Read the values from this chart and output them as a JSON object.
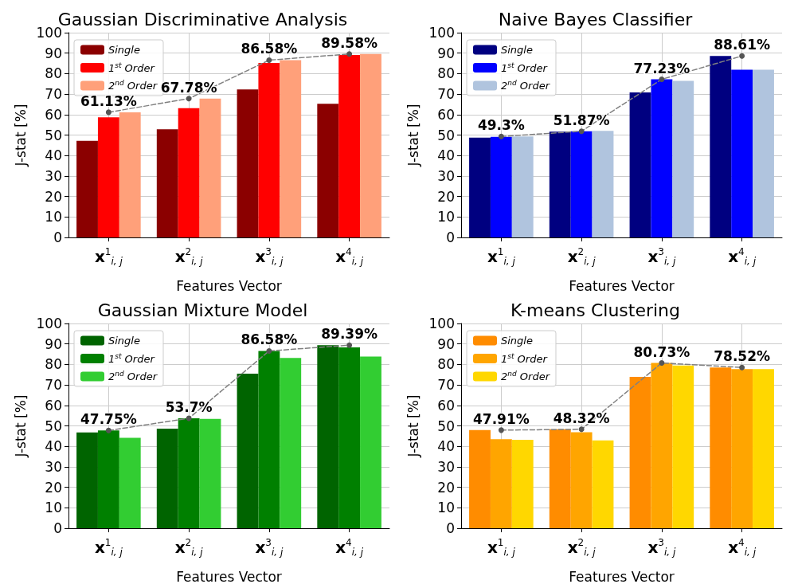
{
  "chart_data": [
    {
      "type": "bar",
      "title": "Gaussian Discriminative Analysis",
      "xlabel": "Features Vector",
      "ylabel": "J-stat [%]",
      "categories": [
        "x$^{1}$$_{i, j}$",
        "x$^{2}$$_{i, j}$",
        "x$^{3}$$_{i, j}$",
        "x$^{4}$$_{i, j}$"
      ],
      "series": [
        {
          "name": "Single",
          "color": "#8b0000",
          "values": [
            47.2,
            52.8,
            72.3,
            65.3
          ]
        },
        {
          "name": "1$^{st}$ Order",
          "color": "#ff0000",
          "values": [
            58.7,
            63.1,
            85.2,
            89.1
          ]
        },
        {
          "name": "2$^{nd}$ Order",
          "color": "#ffa07a",
          "values": [
            61.13,
            67.78,
            86.58,
            89.58
          ]
        },
        {
          "type": "line",
          "color": "#808080",
          "line_style": "dashed",
          "marker": "circle",
          "values": [
            61.13,
            67.78,
            86.58,
            89.58
          ],
          "value_labels": [
            "61.13%",
            "67.78%",
            "86.58%",
            "89.58%"
          ]
        }
      ],
      "ylim": [
        0,
        100
      ],
      "yticks": [
        0,
        10,
        20,
        30,
        40,
        50,
        60,
        70,
        80,
        90,
        100
      ],
      "grid": true,
      "legend": "top left"
    },
    {
      "type": "bar",
      "title": "Naive Bayes Classifier",
      "xlabel": "Features Vector",
      "ylabel": "J-stat [%]",
      "categories": [
        "x$^{1}$$_{i, j}$",
        "x$^{2}$$_{i, j}$",
        "x$^{3}$$_{i, j}$",
        "x$^{4}$$_{i, j}$"
      ],
      "series": [
        {
          "name": "Single",
          "color": "#000080",
          "values": [
            48.7,
            51.7,
            70.8,
            88.61
          ]
        },
        {
          "name": "1$^{st}$ Order",
          "color": "#0000ff",
          "values": [
            49.1,
            51.87,
            77.23,
            81.9
          ]
        },
        {
          "name": "2$^{nd}$ Order",
          "color": "#b0c4de",
          "values": [
            49.3,
            52.0,
            76.5,
            81.9
          ]
        },
        {
          "type": "line",
          "color": "#808080",
          "line_style": "dashed",
          "marker": "circle",
          "values": [
            49.3,
            51.87,
            77.23,
            88.61
          ],
          "value_labels": [
            "49.3%",
            "51.87%",
            "77.23%",
            "88.61%"
          ]
        }
      ],
      "ylim": [
        0,
        100
      ],
      "yticks": [
        0,
        10,
        20,
        30,
        40,
        50,
        60,
        70,
        80,
        90,
        100
      ],
      "grid": true,
      "legend": "top left"
    },
    {
      "type": "bar",
      "title": "Gaussian Mixture Model",
      "xlabel": "Features Vector",
      "ylabel": "J-stat [%]",
      "categories": [
        "x$^{1}$$_{i, j}$",
        "x$^{2}$$_{i, j}$",
        "x$^{3}$$_{i, j}$",
        "x$^{4}$$_{i, j}$"
      ],
      "series": [
        {
          "name": "Single",
          "color": "#006400",
          "values": [
            46.8,
            48.6,
            75.5,
            89.39
          ]
        },
        {
          "name": "1$^{st}$ Order",
          "color": "#008000",
          "values": [
            47.75,
            53.7,
            86.58,
            88.3
          ]
        },
        {
          "name": "2$^{nd}$ Order",
          "color": "#32cd32",
          "values": [
            44.2,
            53.4,
            83.2,
            83.9
          ]
        },
        {
          "type": "line",
          "color": "#808080",
          "line_style": "dashed",
          "marker": "circle",
          "values": [
            47.75,
            53.7,
            86.58,
            89.39
          ],
          "value_labels": [
            "47.75%",
            "53.7%",
            "86.58%",
            "89.39%"
          ]
        }
      ],
      "ylim": [
        0,
        100
      ],
      "yticks": [
        0,
        10,
        20,
        30,
        40,
        50,
        60,
        70,
        80,
        90,
        100
      ],
      "grid": true,
      "legend": "top left"
    },
    {
      "type": "bar",
      "title": "K-means Clustering",
      "xlabel": "Features Vector",
      "ylabel": "J-stat [%]",
      "categories": [
        "x$^{1}$$_{i, j}$",
        "x$^{2}$$_{i, j}$",
        "x$^{3}$$_{i, j}$",
        "x$^{4}$$_{i, j}$"
      ],
      "series": [
        {
          "name": "Single",
          "color": "#ff8c00",
          "values": [
            47.91,
            48.32,
            73.9,
            78.52
          ]
        },
        {
          "name": "1$^{st}$ Order",
          "color": "#ffa500",
          "values": [
            43.5,
            46.9,
            80.73,
            77.7
          ]
        },
        {
          "name": "2$^{nd}$ Order",
          "color": "#ffd700",
          "values": [
            43.2,
            42.9,
            79.5,
            77.7
          ]
        },
        {
          "type": "line",
          "color": "#808080",
          "line_style": "dashed",
          "marker": "circle",
          "values": [
            47.91,
            48.32,
            80.73,
            78.52
          ],
          "value_labels": [
            "47.91%",
            "48.32%",
            "80.73%",
            "78.52%"
          ]
        }
      ],
      "ylim": [
        0,
        100
      ],
      "yticks": [
        0,
        10,
        20,
        30,
        40,
        50,
        60,
        70,
        80,
        90,
        100
      ],
      "grid": true,
      "legend": "top left"
    }
  ]
}
